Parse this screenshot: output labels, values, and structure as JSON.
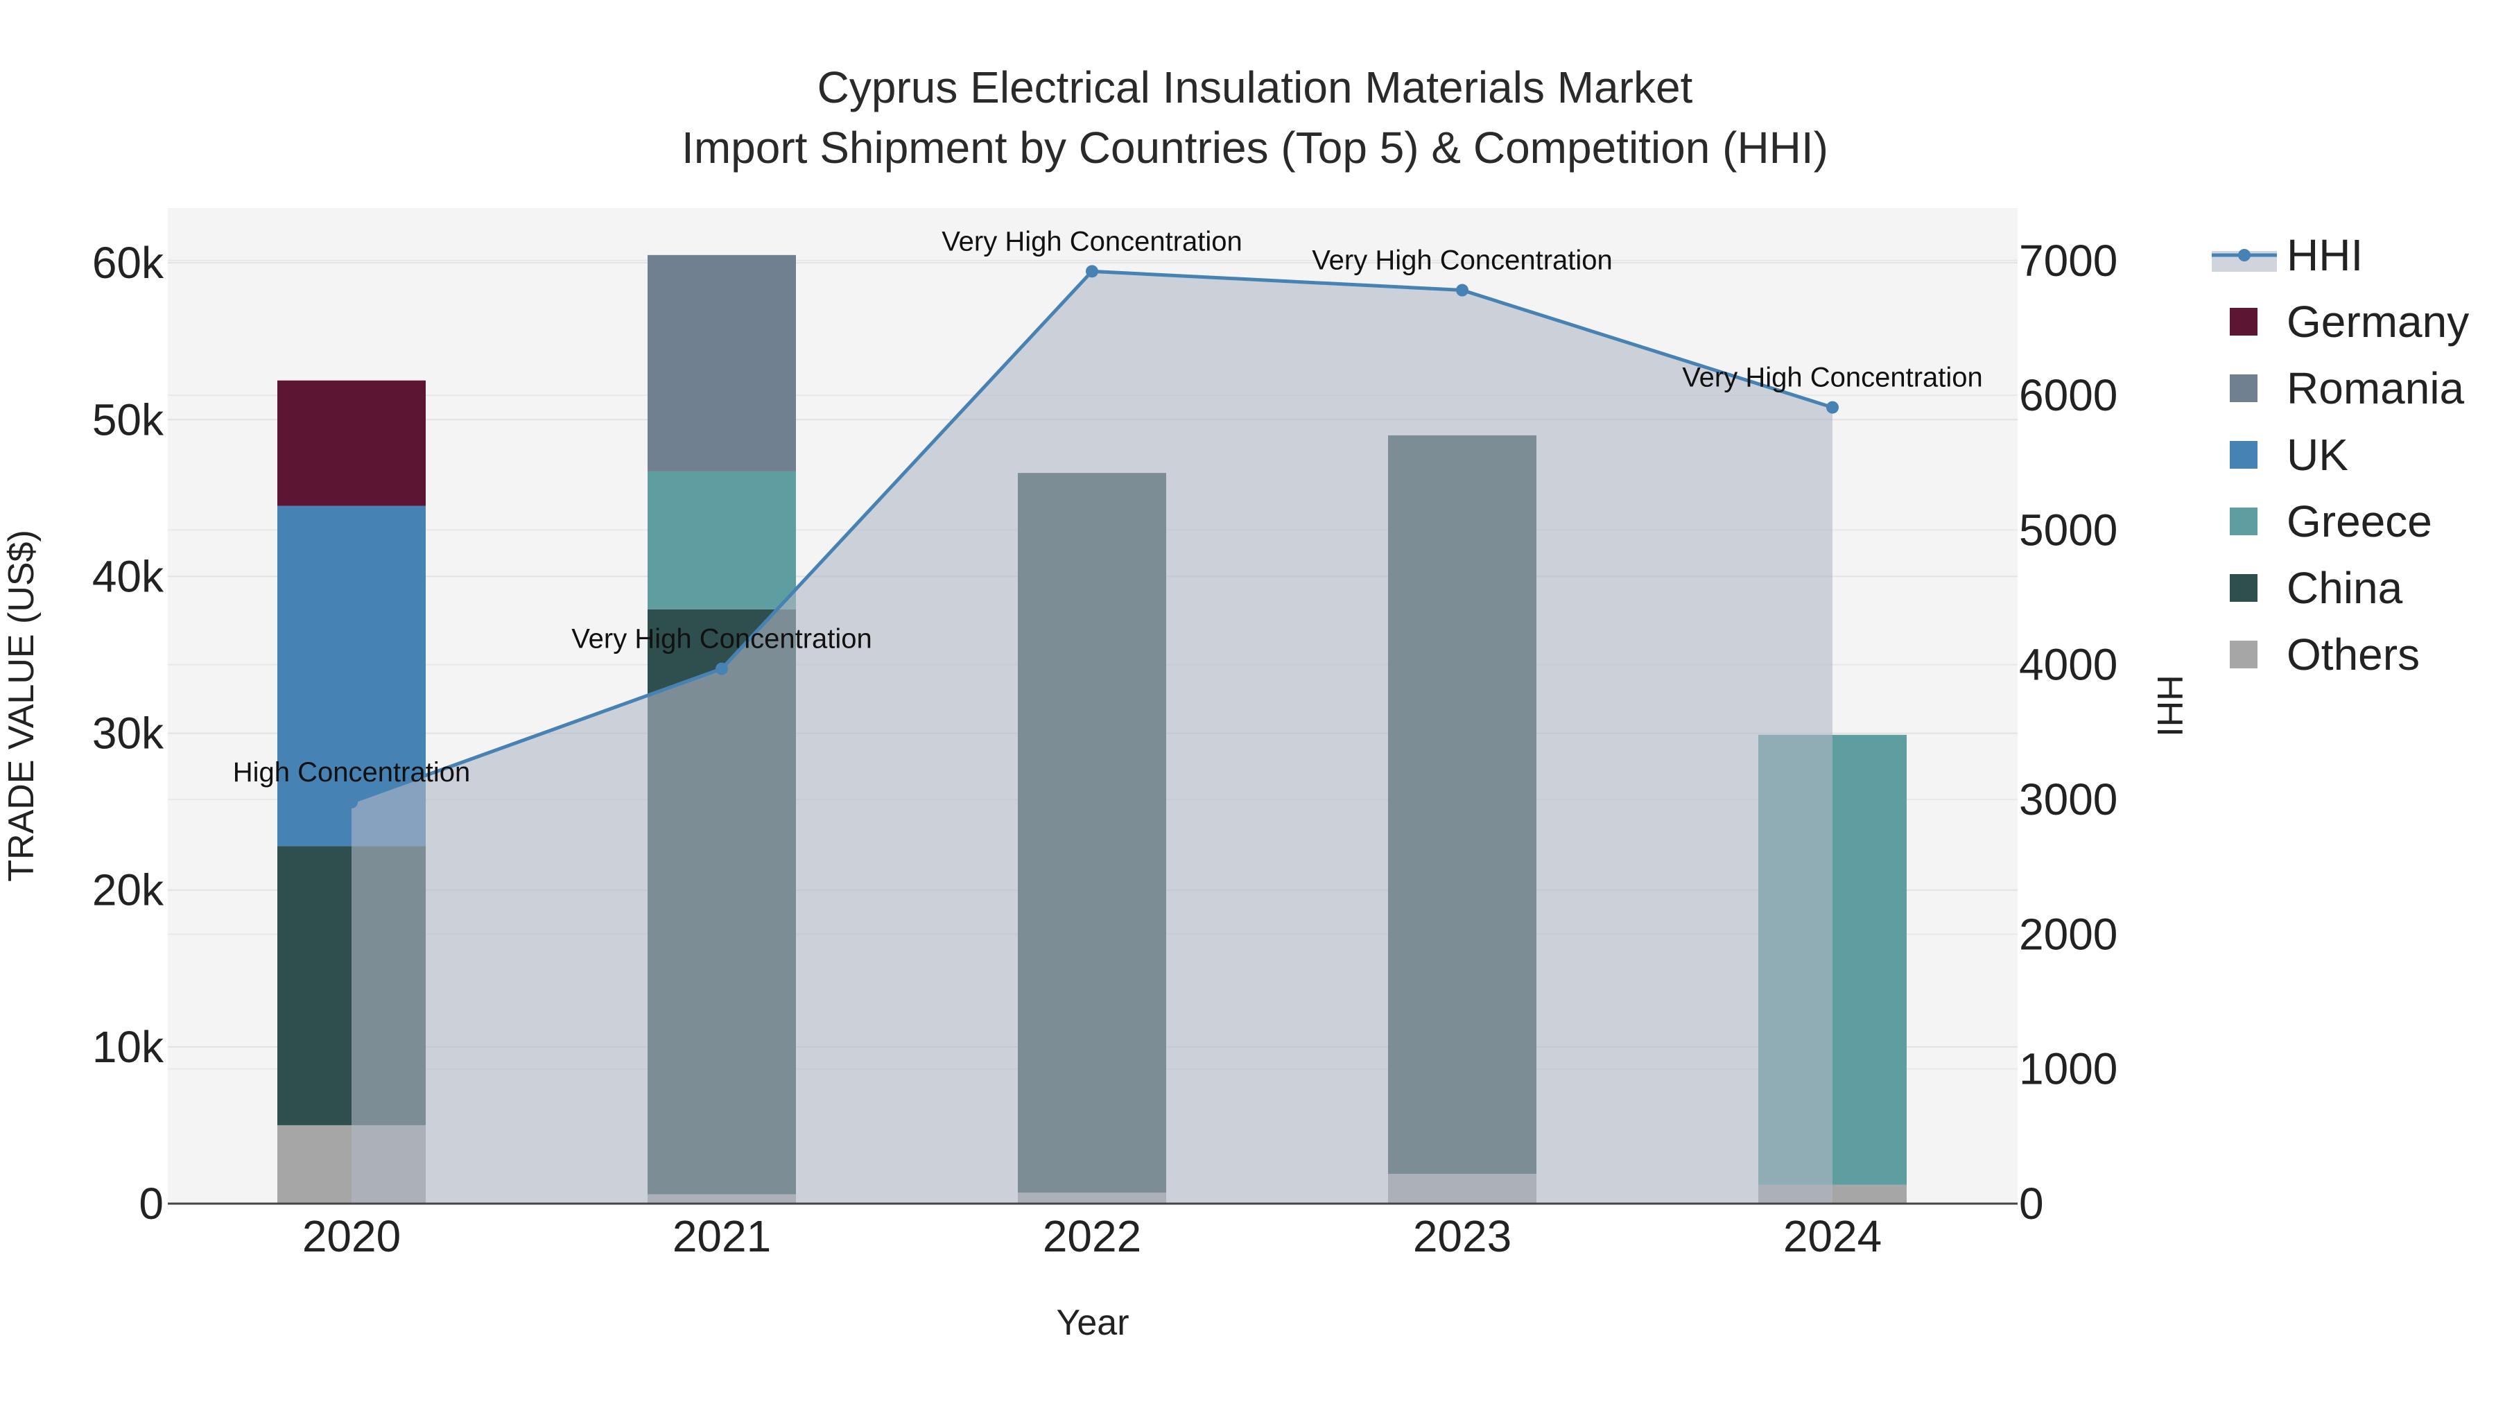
{
  "chart_data": {
    "type": "bar",
    "title": "Cyprus Electrical Insulation Materials Market",
    "subtitle": "Import Shipment by Countries (Top 5) & Competition (HHI)",
    "xlabel": "Year",
    "ylabel": "TRADE VALUE (US$)",
    "y2label": "HHI",
    "categories": [
      "2020",
      "2021",
      "2022",
      "2023",
      "2024"
    ],
    "ylim": [
      0,
      63500
    ],
    "y2lim": [
      0,
      7390
    ],
    "yticks": [
      0,
      10000,
      20000,
      30000,
      40000,
      50000,
      60000
    ],
    "ytick_labels": [
      "0",
      "10k",
      "20k",
      "30k",
      "40k",
      "50k",
      "60k"
    ],
    "y2ticks": [
      0,
      1000,
      2000,
      3000,
      4000,
      5000,
      6000,
      7000
    ],
    "y2tick_labels": [
      "0",
      "1000",
      "2000",
      "3000",
      "4000",
      "5000",
      "6000",
      "7000"
    ],
    "series": [
      {
        "name": "Others",
        "color": "#a6a6a6",
        "values": [
          5000,
          600,
          700,
          1900,
          1200
        ]
      },
      {
        "name": "China",
        "color": "#2f4f4f",
        "values": [
          17800,
          37300,
          45900,
          47100,
          0
        ]
      },
      {
        "name": "Greece",
        "color": "#5f9ea0",
        "values": [
          0,
          8800,
          0,
          0,
          28700
        ]
      },
      {
        "name": "UK",
        "color": "#4682b4",
        "values": [
          21700,
          0,
          0,
          0,
          0
        ]
      },
      {
        "name": "Romania",
        "color": "#708090",
        "values": [
          0,
          13800,
          0,
          0,
          0
        ]
      },
      {
        "name": "Germany",
        "color": "#5c1634",
        "values": [
          8000,
          0,
          0,
          0,
          0
        ]
      }
    ],
    "hhi": {
      "name": "HHI",
      "color": "#4682b4",
      "fill_color": "#b0b8c4",
      "values": [
        2980,
        3970,
        6920,
        6780,
        5910
      ],
      "labels": [
        "High Concentration",
        "Very High Concentration",
        "Very High Concentration",
        "Very High Concentration",
        "Very High Concentration"
      ]
    },
    "legend": [
      "HHI",
      "Germany",
      "Romania",
      "UK",
      "Greece",
      "China",
      "Others"
    ],
    "legend_placement": "right"
  }
}
